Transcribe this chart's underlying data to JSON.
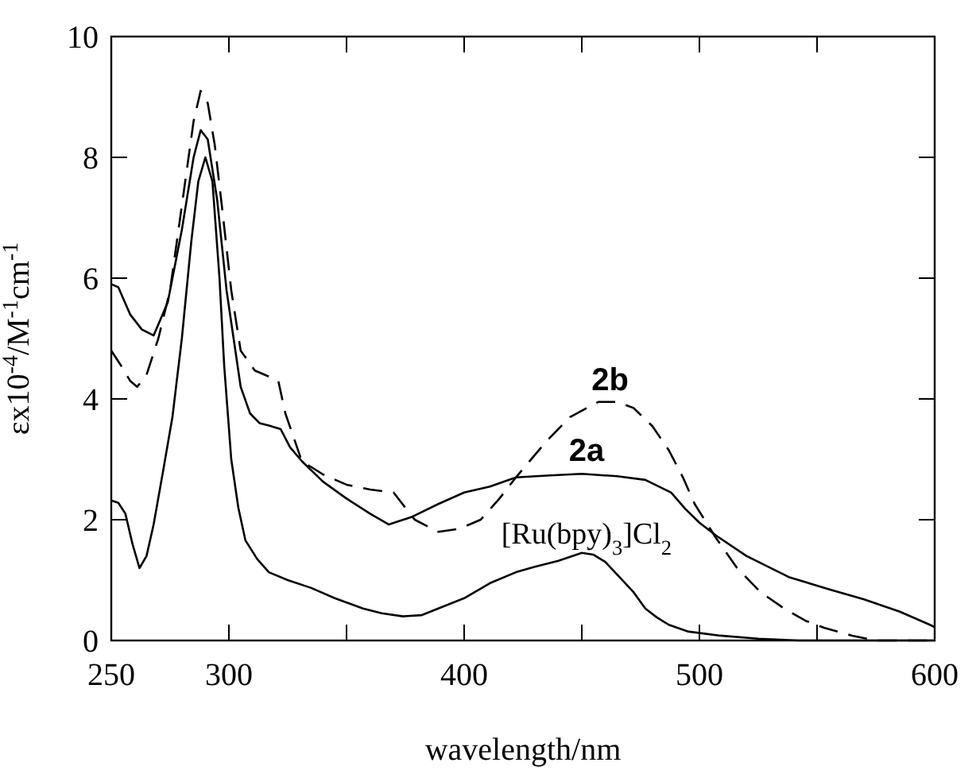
{
  "chart_data": {
    "type": "line",
    "xlabel": "wavelength/nm",
    "ylabel": "εx10$^{-4}$/M$^{-1}$cm$^{-1}$",
    "xlim": [
      250,
      600
    ],
    "ylim": [
      0,
      10
    ],
    "xticks": [
      250,
      300,
      {
        "value": 350,
        "label": null
      },
      400,
      {
        "value": 450,
        "label": null
      },
      500,
      {
        "value": 550,
        "label": null
      },
      600
    ],
    "yticks": [
      0,
      2,
      4,
      6,
      8,
      10
    ],
    "grid": false,
    "series": [
      {
        "name": "2a",
        "color": "#000000",
        "line_style": "solid",
        "x": [
          250,
          253,
          258,
          263,
          268,
          274,
          280,
          285,
          288,
          291,
          295,
          299,
          302,
          305,
          309,
          313,
          317,
          322,
          326,
          331,
          340,
          350,
          360,
          368,
          378,
          389,
          400,
          411,
          422,
          435,
          450,
          465,
          477,
          488,
          494,
          500,
          507,
          520,
          538,
          555,
          570,
          585,
          598,
          600
        ],
        "values": [
          5.9,
          5.85,
          5.4,
          5.15,
          5.05,
          5.6,
          6.8,
          8.0,
          8.45,
          8.3,
          7.3,
          5.8,
          5.0,
          4.2,
          3.76,
          3.6,
          3.56,
          3.5,
          3.2,
          2.97,
          2.63,
          2.35,
          2.1,
          1.92,
          2.05,
          2.26,
          2.45,
          2.55,
          2.7,
          2.73,
          2.76,
          2.72,
          2.66,
          2.45,
          2.18,
          1.95,
          1.74,
          1.4,
          1.05,
          0.85,
          0.68,
          0.48,
          0.26,
          0.22
        ]
      },
      {
        "name": "2b",
        "color": "#000000",
        "line_style": "dashed",
        "x": [
          250,
          255,
          258,
          261,
          265,
          270,
          275,
          280,
          285,
          288,
          291,
          294,
          297,
          301,
          305,
          311,
          317,
          321,
          324,
          331,
          340,
          350,
          360,
          370,
          379,
          389,
          398,
          407,
          415,
          422,
          435,
          445,
          457,
          465,
          472,
          480,
          487,
          493,
          498,
          507,
          516,
          526,
          536,
          545,
          553,
          565,
          575,
          590,
          600
        ],
        "values": [
          4.8,
          4.5,
          4.3,
          4.2,
          4.4,
          5.0,
          5.8,
          7.2,
          8.6,
          9.1,
          8.9,
          8.2,
          7.2,
          5.8,
          4.8,
          4.47,
          4.37,
          4.3,
          3.76,
          2.97,
          2.75,
          2.58,
          2.5,
          2.45,
          2.0,
          1.8,
          1.85,
          2.0,
          2.35,
          2.7,
          3.3,
          3.7,
          3.95,
          3.95,
          3.85,
          3.55,
          3.15,
          2.7,
          2.26,
          1.7,
          1.2,
          0.8,
          0.53,
          0.33,
          0.21,
          0.08,
          0.0,
          0.0,
          0.0
        ]
      },
      {
        "name": "[Ru(bpy)$_{3}$]Cl$_{2}$",
        "color": "#000000",
        "line_style": "solid",
        "x": [
          250,
          253,
          256,
          259,
          262,
          265,
          268,
          272,
          276,
          280,
          284,
          287,
          290,
          293,
          296,
          298,
          301,
          304,
          307,
          312,
          317,
          325,
          335,
          345,
          357,
          365,
          374,
          382,
          389,
          400,
          411,
          422,
          430,
          440,
          450,
          455,
          460,
          466,
          472,
          477,
          482,
          487,
          495,
          509,
          525,
          542,
          570,
          600
        ],
        "values": [
          2.32,
          2.28,
          2.1,
          1.6,
          1.2,
          1.4,
          1.92,
          2.8,
          3.7,
          5.0,
          6.6,
          7.6,
          8.0,
          7.6,
          6.0,
          4.55,
          3.0,
          2.2,
          1.66,
          1.35,
          1.13,
          1.0,
          0.87,
          0.7,
          0.53,
          0.45,
          0.4,
          0.42,
          0.53,
          0.7,
          0.95,
          1.13,
          1.22,
          1.32,
          1.45,
          1.42,
          1.3,
          1.05,
          0.8,
          0.53,
          0.38,
          0.26,
          0.15,
          0.08,
          0.03,
          0.0,
          0.0,
          0.0
        ]
      }
    ]
  }
}
